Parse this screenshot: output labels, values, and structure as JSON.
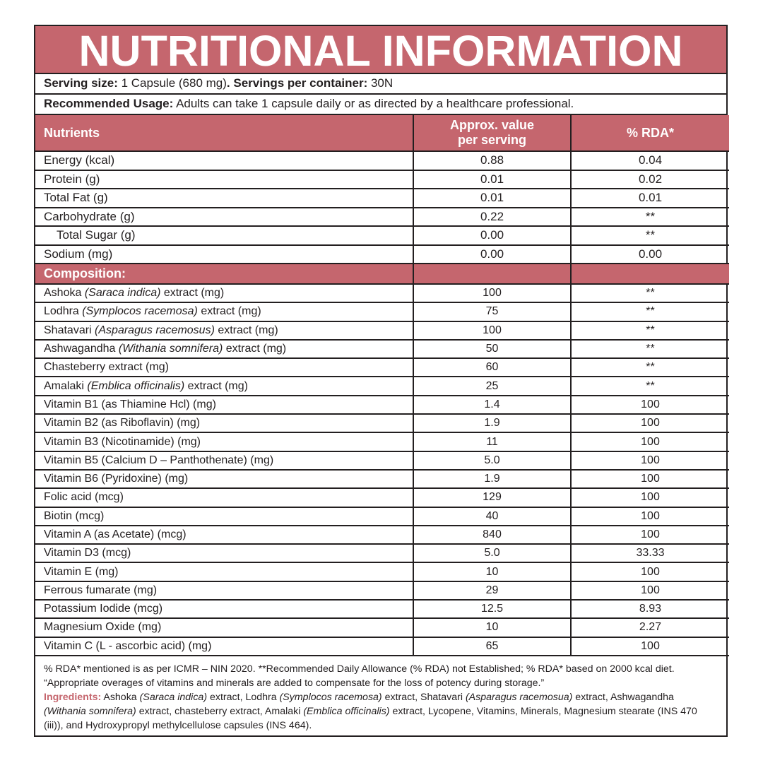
{
  "title": "NUTRITIONAL INFORMATION",
  "serving": {
    "size_label": "Serving size:",
    "size_value": " 1 Capsule (680 mg)",
    "per_label": ". Servings per container:",
    "per_value": " 30N"
  },
  "usage": {
    "label": "Recommended Usage:",
    "text": " Adults can take 1 capsule daily or as directed by a healthcare professional."
  },
  "header": {
    "col1": "Nutrients",
    "col2_line1": "Approx. value",
    "col2_line2": "per serving",
    "col3": "% RDA*"
  },
  "nutrients": [
    {
      "name": "Energy (kcal)",
      "value": "0.88",
      "rda": "0.04"
    },
    {
      "name": "Protein (g)",
      "value": "0.01",
      "rda": "0.02"
    },
    {
      "name": "Total Fat (g)",
      "value": "0.01",
      "rda": "0.01"
    },
    {
      "name": "Carbohydrate (g)",
      "value": "0.22",
      "rda": "**"
    },
    {
      "name": "Total Sugar (g)",
      "value": "0.00",
      "rda": "**"
    },
    {
      "name": "Sodium (mg)",
      "value": "0.00",
      "rda": "0.00"
    }
  ],
  "composition_label": "Composition:",
  "composition": [
    {
      "pre": "Ashoka ",
      "it": "(Saraca indica)",
      "post": " extract (mg)",
      "value": "100",
      "rda": "**"
    },
    {
      "pre": "Lodhra ",
      "it": "(Symplocos racemosa)",
      "post": " extract (mg)",
      "value": "75",
      "rda": "**"
    },
    {
      "pre": "Shatavari ",
      "it": "(Asparagus racemosus)",
      "post": " extract (mg)",
      "value": "100",
      "rda": "**"
    },
    {
      "pre": "Ashwagandha ",
      "it": "(Withania somnifera)",
      "post": " extract (mg)",
      "value": "50",
      "rda": "**"
    },
    {
      "pre": "Chasteberry extract (mg)",
      "it": "",
      "post": "",
      "value": "60",
      "rda": "**"
    },
    {
      "pre": "Amalaki ",
      "it": "(Emblica officinalis)",
      "post": " extract (mg)",
      "value": "25",
      "rda": "**"
    },
    {
      "pre": "Vitamin B1 (as Thiamine Hcl) (mg)",
      "it": "",
      "post": "",
      "value": "1.4",
      "rda": "100"
    },
    {
      "pre": "Vitamin B2 (as Riboflavin) (mg)",
      "it": "",
      "post": "",
      "value": "1.9",
      "rda": "100"
    },
    {
      "pre": "Vitamin B3 (Nicotinamide) (mg)",
      "it": "",
      "post": "",
      "value": "11",
      "rda": "100"
    },
    {
      "pre": "Vitamin B5 (Calcium D – Panthothenate) (mg)",
      "it": "",
      "post": "",
      "value": "5.0",
      "rda": "100"
    },
    {
      "pre": "Vitamin B6 (Pyridoxine) (mg)",
      "it": "",
      "post": "",
      "value": "1.9",
      "rda": "100"
    },
    {
      "pre": "Folic acid (mcg)",
      "it": "",
      "post": "",
      "value": "129",
      "rda": "100"
    },
    {
      "pre": "Biotin (mcg)",
      "it": "",
      "post": "",
      "value": "40",
      "rda": "100"
    },
    {
      "pre": "Vitamin A (as Acetate) (mcg)",
      "it": "",
      "post": "",
      "value": "840",
      "rda": "100"
    },
    {
      "pre": "Vitamin D3 (mcg)",
      "it": "",
      "post": "",
      "value": "5.0",
      "rda": "33.33"
    },
    {
      "pre": "Vitamin E (mg)",
      "it": "",
      "post": "",
      "value": "10",
      "rda": "100"
    },
    {
      "pre": "Ferrous fumarate (mg)",
      "it": "",
      "post": "",
      "value": "29",
      "rda": "100"
    },
    {
      "pre": "Potassium Iodide (mcg)",
      "it": "",
      "post": "",
      "value": "12.5",
      "rda": "8.93"
    },
    {
      "pre": "Magnesium Oxide (mg)",
      "it": "",
      "post": "",
      "value": "10",
      "rda": "2.27"
    },
    {
      "pre": "Vitamin C (L - ascorbic acid) (mg)",
      "it": "",
      "post": "",
      "value": "65",
      "rda": "100"
    }
  ],
  "footnote": "% RDA* mentioned is as per ICMR – NIN 2020. **Recommended Daily Allowance (% RDA) not Established; % RDA* based on 2000 kcal diet. “Appropriate overages of vitamins and minerals are added to compensate for the loss of potency during storage.”",
  "ingredients": {
    "label": "Ingredients:",
    "parts": [
      {
        "t": " Ashoka ",
        "i": false
      },
      {
        "t": "(Saraca indica)",
        "i": true
      },
      {
        "t": " extract, Lodhra ",
        "i": false
      },
      {
        "t": "(Symplocos racemosa)",
        "i": true
      },
      {
        "t": " extract, Shatavari ",
        "i": false
      },
      {
        "t": "(Asparagus racemosua)",
        "i": true
      },
      {
        "t": " extract, Ashwagandha ",
        "i": false
      },
      {
        "t": "(Withania somnifera)",
        "i": true
      },
      {
        "t": " extract, chasteberry extract, Amalaki ",
        "i": false
      },
      {
        "t": "(Emblica officinalis)",
        "i": true
      },
      {
        "t": " extract, Lycopene, Vitamins, Minerals, Magnesium stearate (INS 470 (iii)), and Hydroxypropyl methylcellulose capsules (INS 464).",
        "i": false
      }
    ]
  },
  "colors": {
    "accent": "#c5666e",
    "border": "#231f20",
    "text": "#231f20"
  }
}
